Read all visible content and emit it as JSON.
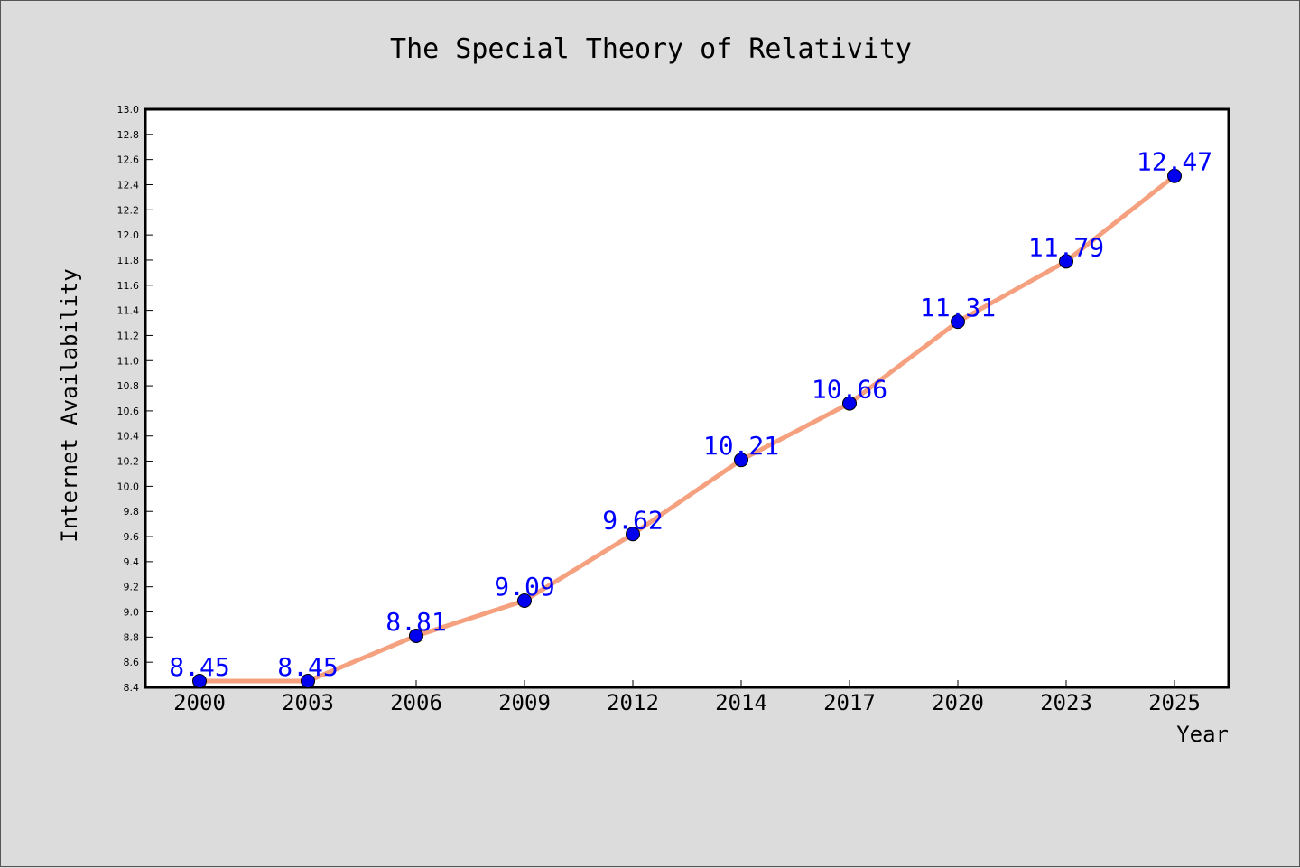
{
  "chart_data": {
    "type": "line",
    "title": "The Special Theory of Relativity",
    "xlabel": "Year",
    "ylabel": "Internet Availability",
    "categories": [
      "2000",
      "2003",
      "2006",
      "2009",
      "2012",
      "2014",
      "2017",
      "2020",
      "2023",
      "2025"
    ],
    "series": [
      {
        "values": [
          8.45,
          8.45,
          8.81,
          9.09,
          9.62,
          10.21,
          10.66,
          11.31,
          11.79,
          12.47
        ],
        "line_color": "#f5a07e",
        "marker_color": "#0000ee"
      }
    ],
    "data_labels": [
      "8.45",
      "8.45",
      "8.81",
      "9.09",
      "9.62",
      "10.21",
      "10.66",
      "11.31",
      "11.79",
      "12.47"
    ],
    "data_label_color": "#0000ff",
    "ylim": [
      8.4,
      13.0
    ],
    "yticks": [
      "8.4",
      "8.6",
      "8.8",
      "9.0",
      "9.2",
      "9.4",
      "9.6",
      "9.8",
      "10.0",
      "10.2",
      "10.4",
      "10.6",
      "10.8",
      "11.0",
      "11.2",
      "11.4",
      "11.6",
      "11.8",
      "12.0",
      "12.2",
      "12.4",
      "12.6",
      "12.8",
      "13.0"
    ],
    "grid": false,
    "legend": "none",
    "background_color": "#dcdcdc",
    "plot_background_color": "#ffffff"
  }
}
